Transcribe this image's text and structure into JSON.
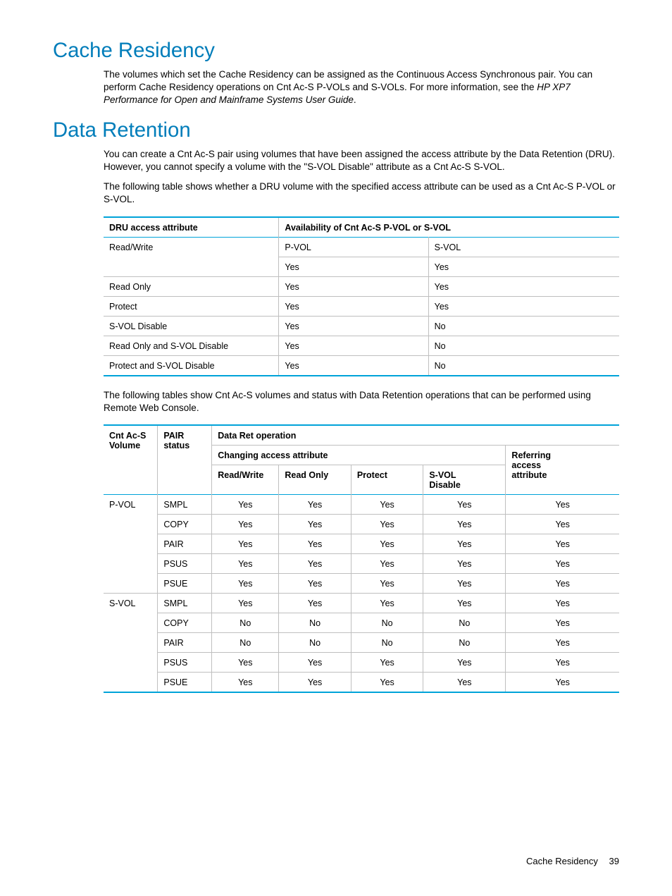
{
  "colors": {
    "heading": "#007dba",
    "table_border": "#00a3d9",
    "row_border": "#bfbfbf",
    "text": "#000000",
    "background": "#ffffff"
  },
  "fonts": {
    "heading_size_pt": 22,
    "body_size_pt": 13.5,
    "table_size_pt": 12.5,
    "footer_size_pt": 13
  },
  "section1": {
    "heading": "Cache Residency",
    "para_pre": "The volumes which set the Cache Residency can be assigned as the Continuous Access Synchronous pair. You can perform Cache Residency operations on Cnt Ac-S P-VOLs and S-VOLs. For more information, see the ",
    "para_italic": "HP XP7 Performance for Open and Mainframe Systems User Guide",
    "para_post": "."
  },
  "section2": {
    "heading": "Data Retention",
    "para1": "You can create a Cnt Ac-S pair using volumes that have been assigned the access attribute by the Data Retention (DRU). However, you cannot specify a volume with the \"S-VOL Disable\" attribute as a Cnt Ac-S S-VOL.",
    "para2": "The following table shows whether a DRU volume with the specified access attribute can be used as a Cnt Ac-S P-VOL or S-VOL.",
    "para3": "The following tables show Cnt Ac-S volumes and status with Data Retention operations that can be performed using Remote Web Console."
  },
  "table1": {
    "headers": {
      "col1": "DRU access attribute",
      "col2": "Availability of Cnt Ac-S P-VOL or S-VOL"
    },
    "sub": {
      "pvol": "P-VOL",
      "svol": "S-VOL"
    },
    "rows": [
      {
        "attr": "Read/Write",
        "p": "Yes",
        "s": "Yes",
        "first": true
      },
      {
        "attr": "Read Only",
        "p": "Yes",
        "s": "Yes"
      },
      {
        "attr": "Protect",
        "p": "Yes",
        "s": "Yes"
      },
      {
        "attr": "S-VOL Disable",
        "p": "Yes",
        "s": "No"
      },
      {
        "attr": "Read Only and S-VOL Disable",
        "p": "Yes",
        "s": "No"
      },
      {
        "attr": "Protect and S-VOL Disable",
        "p": "Yes",
        "s": "No"
      }
    ],
    "col_widths": [
      "34%",
      "29%",
      "37%"
    ]
  },
  "table2": {
    "headers": {
      "vol": "Cnt Ac-S Volume",
      "pair": "PAIR status",
      "op": "Data Ret operation",
      "changing": "Changing access attribute",
      "referring": "Referring access attribute",
      "rw": "Read/Write",
      "ro": "Read Only",
      "protect": "Protect",
      "svol": "S-VOL Disable"
    },
    "groups": [
      {
        "vol": "P-VOL",
        "rows": [
          {
            "status": "SMPL",
            "rw": "Yes",
            "ro": "Yes",
            "pr": "Yes",
            "sv": "Yes",
            "ref": "Yes"
          },
          {
            "status": "COPY",
            "rw": "Yes",
            "ro": "Yes",
            "pr": "Yes",
            "sv": "Yes",
            "ref": "Yes"
          },
          {
            "status": "PAIR",
            "rw": "Yes",
            "ro": "Yes",
            "pr": "Yes",
            "sv": "Yes",
            "ref": "Yes"
          },
          {
            "status": "PSUS",
            "rw": "Yes",
            "ro": "Yes",
            "pr": "Yes",
            "sv": "Yes",
            "ref": "Yes"
          },
          {
            "status": "PSUE",
            "rw": "Yes",
            "ro": "Yes",
            "pr": "Yes",
            "sv": "Yes",
            "ref": "Yes"
          }
        ]
      },
      {
        "vol": "S-VOL",
        "rows": [
          {
            "status": "SMPL",
            "rw": "Yes",
            "ro": "Yes",
            "pr": "Yes",
            "sv": "Yes",
            "ref": "Yes"
          },
          {
            "status": "COPY",
            "rw": "No",
            "ro": "No",
            "pr": "No",
            "sv": "No",
            "ref": "Yes"
          },
          {
            "status": "PAIR",
            "rw": "No",
            "ro": "No",
            "pr": "No",
            "sv": "No",
            "ref": "Yes"
          },
          {
            "status": "PSUS",
            "rw": "Yes",
            "ro": "Yes",
            "pr": "Yes",
            "sv": "Yes",
            "ref": "Yes"
          },
          {
            "status": "PSUE",
            "rw": "Yes",
            "ro": "Yes",
            "pr": "Yes",
            "sv": "Yes",
            "ref": "Yes"
          }
        ]
      }
    ],
    "col_widths": [
      "10.5%",
      "10.5%",
      "13%",
      "14%",
      "14%",
      "16%",
      "22%"
    ]
  },
  "footer": {
    "label": "Cache Residency",
    "page": "39"
  }
}
